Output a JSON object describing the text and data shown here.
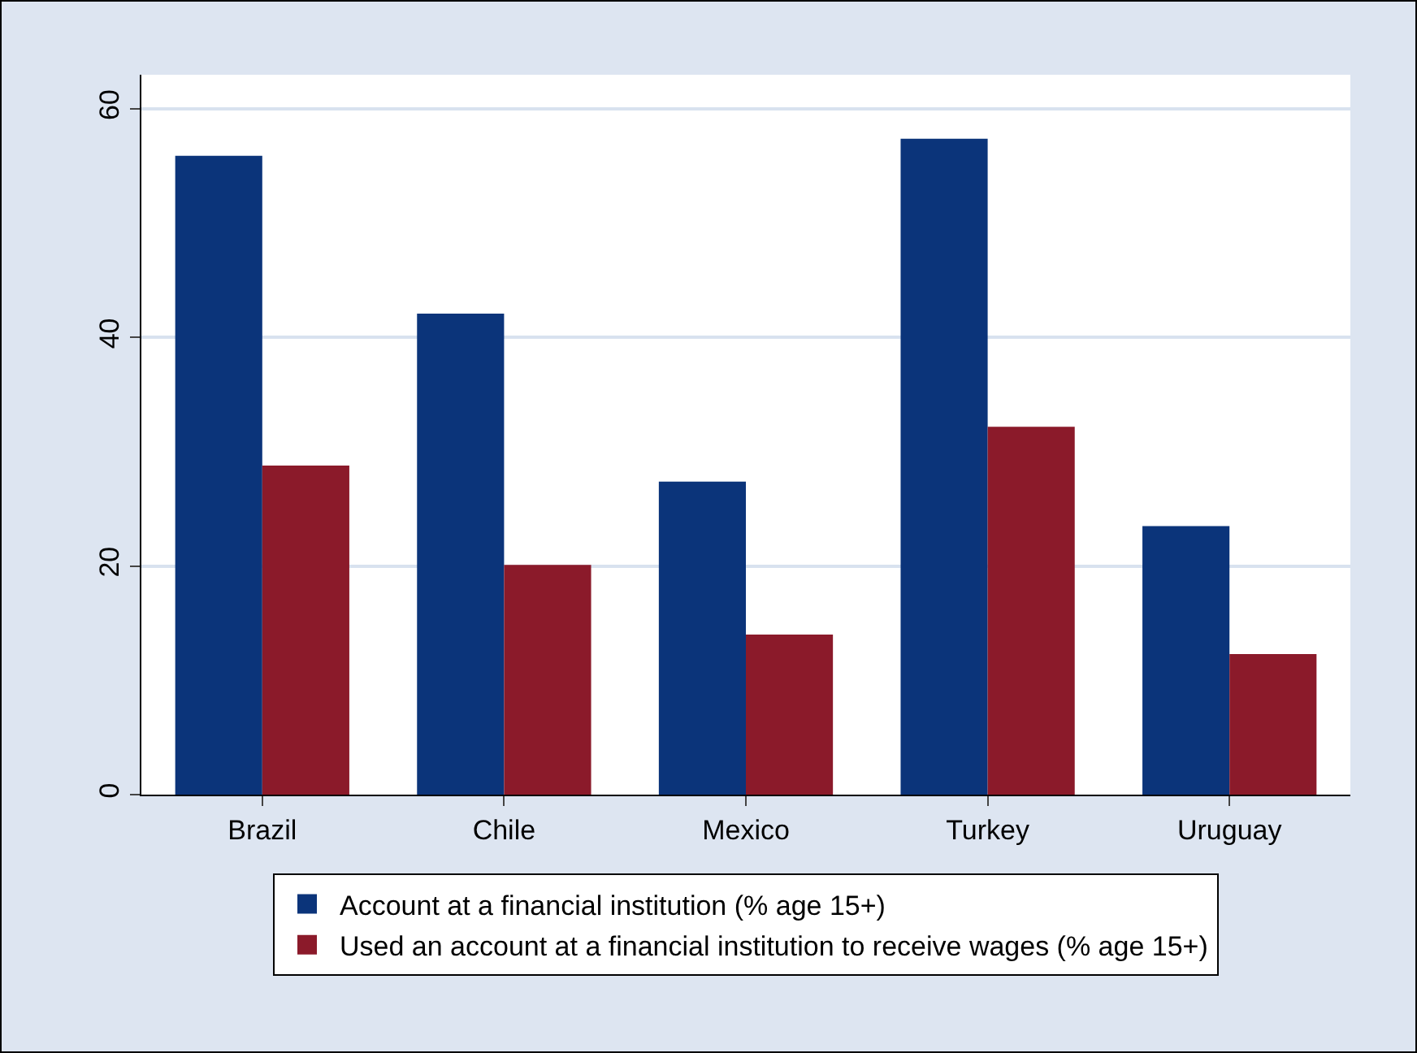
{
  "chart_data": {
    "type": "bar",
    "categories": [
      "Brazil",
      "Chile",
      "Mexico",
      "Turkey",
      "Uruguay"
    ],
    "series": [
      {
        "name": "Account at a financial institution (% age 15+)",
        "color": "#0b347a",
        "values": [
          55.9,
          42.1,
          27.4,
          57.4,
          23.5
        ]
      },
      {
        "name": "Used an account at a financial institution to receive wages (% age 15+)",
        "color": "#8b1a2a",
        "values": [
          28.8,
          20.1,
          14.0,
          32.2,
          12.3
        ]
      }
    ],
    "ylim": [
      0,
      63
    ],
    "yticks": [
      0,
      20,
      40,
      60
    ],
    "grid": "y",
    "legend": "bottom"
  }
}
